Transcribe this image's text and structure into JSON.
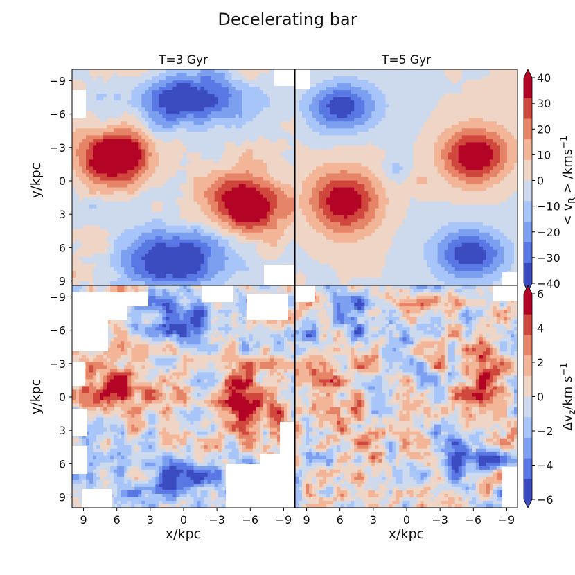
{
  "figure": {
    "title": "Decelerating bar"
  },
  "colors": {
    "palette": [
      "#3b4cc0",
      "#5a78e4",
      "#7d9ff0",
      "#a8c5f9",
      "#cdd9ec",
      "#efd5c6",
      "#f3b597",
      "#e68468",
      "#d0473d",
      "#b40426"
    ],
    "contour_line": "#2b2b2b"
  },
  "chart_data": [
    {
      "type": "heatmap",
      "panel": "top-left",
      "title": "T=3 Gyr",
      "xlabel": "",
      "ylabel": "y/kpc",
      "xlim": [
        10,
        -10
      ],
      "ylim": [
        -10,
        10
      ],
      "xticks": [],
      "yticks": [
        "−9",
        "−6",
        "−3",
        "0",
        "3",
        "6",
        "9"
      ],
      "field": "quadrupole_strong",
      "z_range": [
        -40,
        40
      ],
      "blank_regions": "corner masks at top-right and bottom-right"
    },
    {
      "type": "heatmap",
      "panel": "top-right",
      "title": "T=5 Gyr",
      "xlabel": "",
      "ylabel": "",
      "xlim": [
        10,
        -10
      ],
      "ylim": [
        -10,
        10
      ],
      "xticks": [],
      "yticks": [],
      "field": "quadrupole_smooth",
      "z_range": [
        -40,
        40
      ]
    },
    {
      "type": "heatmap",
      "panel": "bottom-left",
      "title": "",
      "xlabel": "x/kpc",
      "ylabel": "y/kpc",
      "xlim": [
        10,
        -10
      ],
      "ylim": [
        -10,
        10
      ],
      "xticks": [
        "9",
        "6",
        "3",
        "0",
        "−3",
        "−6",
        "−9"
      ],
      "yticks": [
        "−9",
        "−6",
        "−3",
        "0",
        "3",
        "6",
        "9"
      ],
      "field": "vz_noisy",
      "z_range": [
        -6,
        6
      ]
    },
    {
      "type": "heatmap",
      "panel": "bottom-right",
      "title": "",
      "xlabel": "x/kpc",
      "ylabel": "",
      "xlim": [
        10,
        -10
      ],
      "ylim": [
        -10,
        10
      ],
      "xticks": [
        "9",
        "6",
        "3",
        "0",
        "−3",
        "−6",
        "−9"
      ],
      "yticks": [],
      "field": "vz_noisy_weak",
      "z_range": [
        -6,
        6
      ]
    }
  ],
  "colorbars": [
    {
      "label": "< v_R > /kms^-1",
      "label_parts": {
        "pre": "< v",
        "sub": "R",
        "mid": " > /kms",
        "sup": "−1"
      },
      "ticks": [
        "40",
        "30",
        "20",
        "10",
        "0",
        "−10",
        "−20",
        "−30",
        "−40"
      ],
      "range": [
        -40,
        40
      ],
      "extend": "both"
    },
    {
      "label": "Δv_z/km s^-1",
      "label_parts": {
        "pre": "Δv",
        "sub": "z",
        "mid": "/km s",
        "sup": "−1"
      },
      "ticks": [
        "6",
        "4",
        "2",
        "0",
        "−2",
        "−4",
        "−6"
      ],
      "range": [
        -6,
        6
      ],
      "extend": "both"
    }
  ]
}
